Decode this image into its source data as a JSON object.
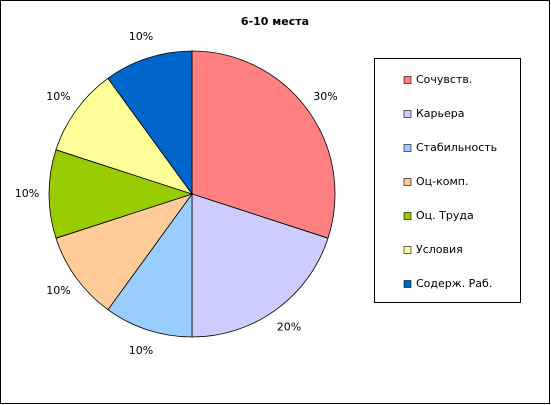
{
  "chart_data": {
    "type": "pie",
    "title": "6-10 места",
    "categories": [
      "Сочувств.",
      "Карьера",
      "Стабильность",
      "Оц-комп.",
      "Оц.  Труда",
      "Условия",
      "Содерж. Раб."
    ],
    "values": [
      30,
      20,
      10,
      10,
      10,
      10,
      10
    ],
    "value_labels": [
      "30%",
      "20%",
      "10%",
      "10%",
      "10%",
      "10%",
      "10%"
    ],
    "colors": [
      "#ff8080",
      "#ccccff",
      "#99ccff",
      "#ffcc99",
      "#99cc00",
      "#ffff99",
      "#0066cc"
    ],
    "legend": "right"
  }
}
